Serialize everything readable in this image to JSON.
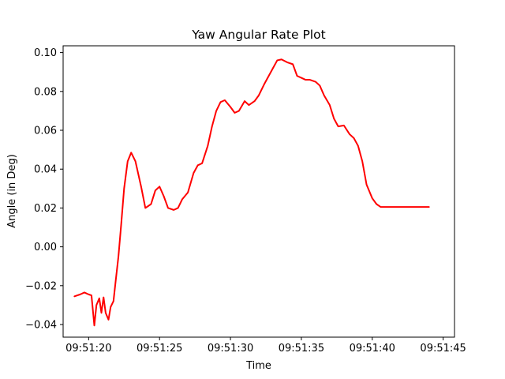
{
  "chart_data": {
    "type": "line",
    "title": "Yaw Angular Rate Plot",
    "xlabel": "Time",
    "ylabel": "Angle (in Deg)",
    "x_ticks": [
      "09:51:20",
      "09:51:25",
      "09:51:30",
      "09:51:35",
      "09:51:40",
      "09:51:45"
    ],
    "y_ticks": [
      "−0.04",
      "−0.02",
      "0.00",
      "0.02",
      "0.04",
      "0.06",
      "0.08",
      "0.10"
    ],
    "xlim": [
      "09:51:18.2",
      "09:51:45.8"
    ],
    "ylim": [
      -0.0465,
      0.1035
    ],
    "grid": false,
    "line_color": "#ff0000",
    "series": [
      {
        "x": [
          "09:51:19.0",
          "09:51:19.4",
          "09:51:19.7",
          "09:51:20.0",
          "09:51:20.2",
          "09:51:20.4",
          "09:51:20.55",
          "09:51:20.75",
          "09:51:20.9",
          "09:51:21.05",
          "09:51:21.2",
          "09:51:21.4",
          "09:51:21.55",
          "09:51:21.75",
          "09:51:21.9",
          "09:51:22.1",
          "09:51:22.3",
          "09:51:22.5",
          "09:51:22.75",
          "09:51:23.0",
          "09:51:23.3",
          "09:51:23.7",
          "09:51:24.0",
          "09:51:24.4",
          "09:51:24.7",
          "09:51:25.0",
          "09:51:25.3",
          "09:51:25.6",
          "09:51:26.0",
          "09:51:26.3",
          "09:51:26.6",
          "09:51:27.0",
          "09:51:27.4",
          "09:51:27.7",
          "09:51:28.0",
          "09:51:28.4",
          "09:51:28.7",
          "09:51:29.0",
          "09:51:29.3",
          "09:51:29.6",
          "09:51:30.0",
          "09:51:30.3",
          "09:51:30.6",
          "09:51:31.0",
          "09:51:31.3",
          "09:51:31.7",
          "09:51:32.0",
          "09:51:32.4",
          "09:51:32.7",
          "09:51:33.0",
          "09:51:33.3",
          "09:51:33.6",
          "09:51:34.0",
          "09:51:34.4",
          "09:51:34.7",
          "09:51:35.0",
          "09:51:35.3",
          "09:51:35.6",
          "09:51:36.0",
          "09:51:36.3",
          "09:51:36.6",
          "09:51:37.0",
          "09:51:37.3",
          "09:51:37.6",
          "09:51:38.0",
          "09:51:38.4",
          "09:51:38.7",
          "09:51:39.0",
          "09:51:39.3",
          "09:51:39.6",
          "09:51:40.0",
          "09:51:40.3",
          "09:51:40.6",
          "09:51:40.9",
          "09:51:41.3",
          "09:51:41.6",
          "09:51:42.0",
          "09:51:42.3",
          "09:51:42.6",
          "09:51:42.9",
          "09:51:43.2",
          "09:51:43.5",
          "09:51:43.8",
          "09:51:44.0"
        ],
        "y": [
          -0.0255,
          -0.0245,
          -0.0235,
          -0.0245,
          -0.025,
          -0.0405,
          -0.03,
          -0.0265,
          -0.034,
          -0.026,
          -0.034,
          -0.0375,
          -0.031,
          -0.028,
          -0.018,
          -0.005,
          0.012,
          0.03,
          0.044,
          0.0485,
          0.044,
          0.031,
          0.02,
          0.022,
          0.029,
          0.031,
          0.026,
          0.02,
          0.019,
          0.02,
          0.0245,
          0.028,
          0.038,
          0.042,
          0.043,
          0.052,
          0.062,
          0.07,
          0.0745,
          0.0755,
          0.072,
          0.069,
          0.07,
          0.075,
          0.073,
          0.075,
          0.078,
          0.084,
          0.088,
          0.092,
          0.096,
          0.0965,
          0.095,
          0.094,
          0.088,
          0.087,
          0.086,
          0.086,
          0.085,
          0.083,
          0.078,
          0.073,
          0.066,
          0.062,
          0.0625,
          0.058,
          0.056,
          0.052,
          0.044,
          0.032,
          0.025,
          0.022,
          0.0205,
          0.0205,
          0.0205,
          0.0205,
          0.0205,
          0.0205,
          0.0205,
          0.0205,
          0.0205,
          0.0205,
          0.0205,
          0.0205
        ]
      }
    ]
  }
}
